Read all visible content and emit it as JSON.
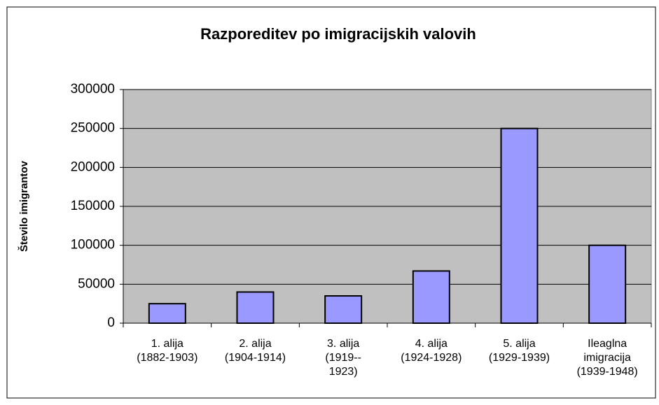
{
  "chart_data": {
    "type": "bar",
    "title": "Razporeditev po imigracijskih valovih",
    "y_label": "Število imigrantov",
    "categories": [
      "1. alija\n(1882-1903)",
      "2. alija\n(1904-1914)",
      "3. alija\n(1919--\n1923)",
      "4. alija\n(1924-1928)",
      "5. alija\n(1929-1939)",
      "Ileaglna\nimigracija\n(1939-1948)"
    ],
    "values": [
      25000,
      40000,
      35000,
      67000,
      250000,
      100000
    ],
    "color": "#9999ff",
    "ylim": [
      0,
      300000
    ],
    "yticks": [
      0,
      50000,
      100000,
      150000,
      200000,
      250000,
      300000
    ],
    "grid": true
  }
}
